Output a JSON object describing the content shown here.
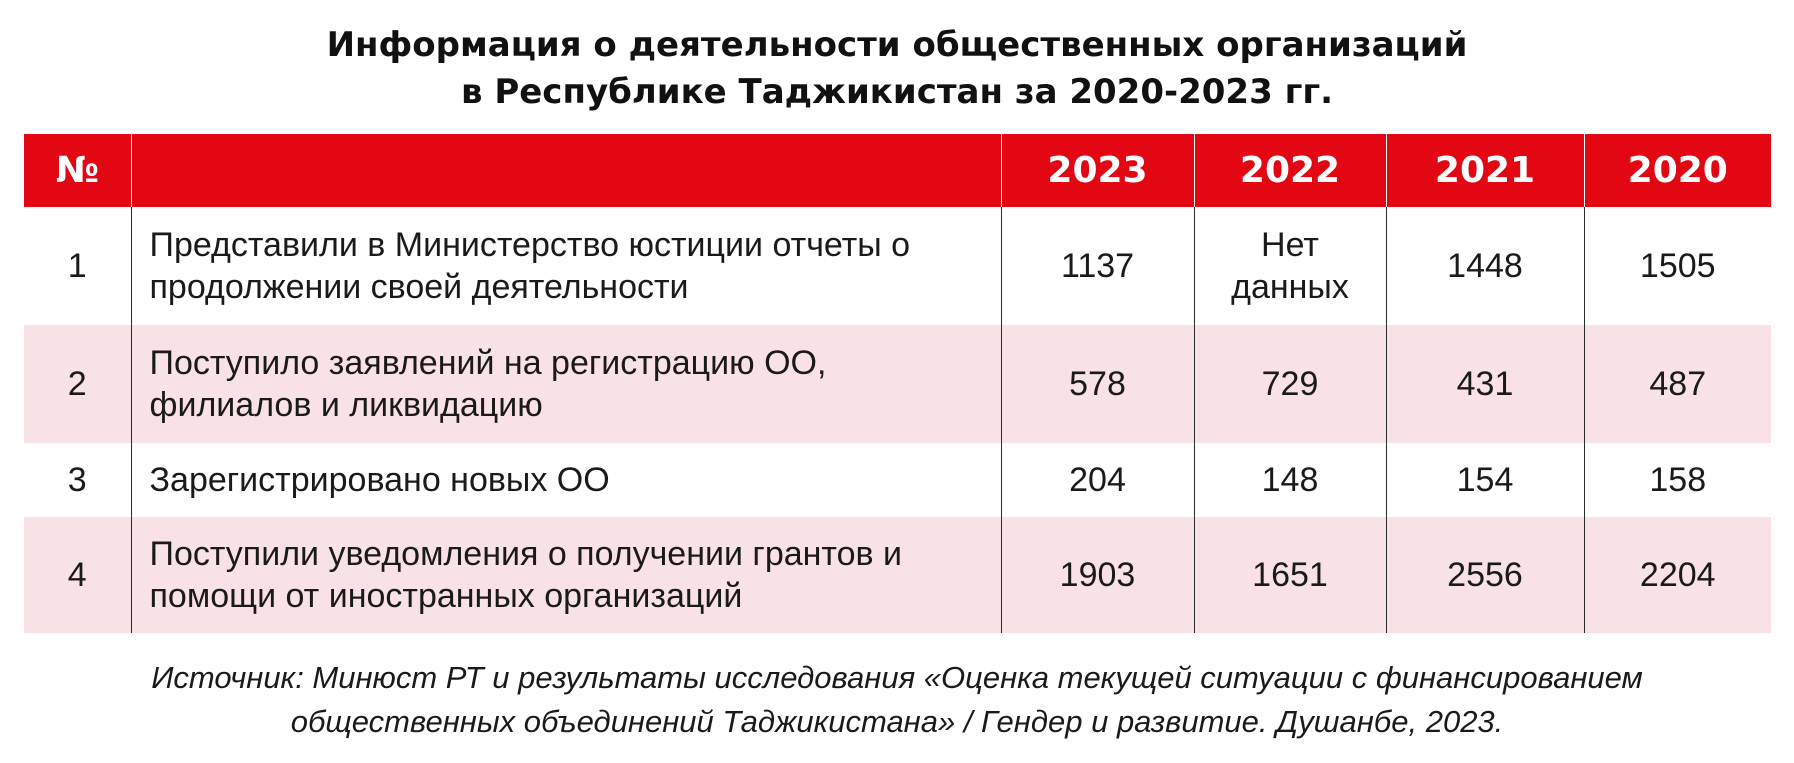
{
  "title": {
    "line1": "Информация о деятельности общественных организаций",
    "line2": "в Республике Таджикистан за 2020-2023 гг."
  },
  "table": {
    "headers": {
      "num": "№",
      "desc": "",
      "y2023": "2023",
      "y2022": "2022",
      "y2021": "2021",
      "y2020": "2020"
    },
    "rows": [
      {
        "num": "1",
        "desc": "Представили в Министерство юстиции отчеты о продолжении своей деятельности",
        "y2023": "1137",
        "y2022_line1": "Нет",
        "y2022_line2": "данных",
        "y2021": "1448",
        "y2020": "1505"
      },
      {
        "num": "2",
        "desc": "Поступило заявлений на регистрацию ОО, филиалов и ликвидацию",
        "y2023": "578",
        "y2022": "729",
        "y2021": "431",
        "y2020": "487"
      },
      {
        "num": "3",
        "desc": "Зарегистрировано новых ОО",
        "y2023": "204",
        "y2022": "148",
        "y2021": "154",
        "y2020": "158"
      },
      {
        "num": "4",
        "desc": "Поступили уведомления о получении грантов и помощи от иностранных организаций",
        "y2023": "1903",
        "y2022": "1651",
        "y2021": "2556",
        "y2020": "2204"
      }
    ]
  },
  "source": {
    "line1": "Источник: Минюст РТ и результаты исследования «Оценка текущей ситуации с финансированием",
    "line2": "общественных объединений Таджикистана» / Гендер и развитие. Душанбе, 2023."
  },
  "colors": {
    "header_bg": "#e30613",
    "stripe_bg": "#f9e2e6",
    "header_text": "#ffffff"
  }
}
